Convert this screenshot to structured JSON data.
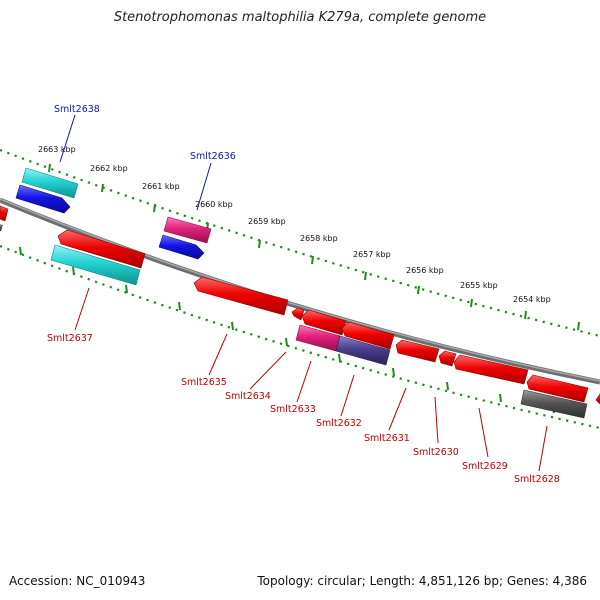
{
  "title": "Stenotrophomonas maltophilia K279a, complete genome",
  "footer": {
    "accession": "Accession: NC_010943",
    "summary": "Topology: circular; Length: 4,851,126 bp; Genes: 4,386"
  },
  "scale_labels": [
    "2663 kbp",
    "2662 kbp",
    "2661 kbp",
    "2660 kbp",
    "2659 kbp",
    "2658 kbp",
    "2657 kbp",
    "2656 kbp",
    "2655 kbp",
    "2654 kbp"
  ],
  "gene_labels": {
    "g2638": "Smlt2638",
    "g2636": "Smlt2636",
    "g2637": "Smlt2637",
    "g2635": "Smlt2635",
    "g2634": "Smlt2634",
    "g2633": "Smlt2633",
    "g2632": "Smlt2632",
    "g2631": "Smlt2631",
    "g2630": "Smlt2630",
    "g2629": "Smlt2629",
    "g2628": "Smlt2628"
  },
  "colors": {
    "backbone": "#7a7a7a",
    "ticks": "#1f8a1f",
    "gene_red": "#ee0000",
    "gene_cyan": "#22d2d2",
    "gene_blue": "#1414e6",
    "gene_magenta": "#e0207a",
    "gene_slate": "#4a3f8a",
    "gene_gray": "#555555",
    "label_blue": "#0b1d9e",
    "label_red": "#c20000"
  }
}
